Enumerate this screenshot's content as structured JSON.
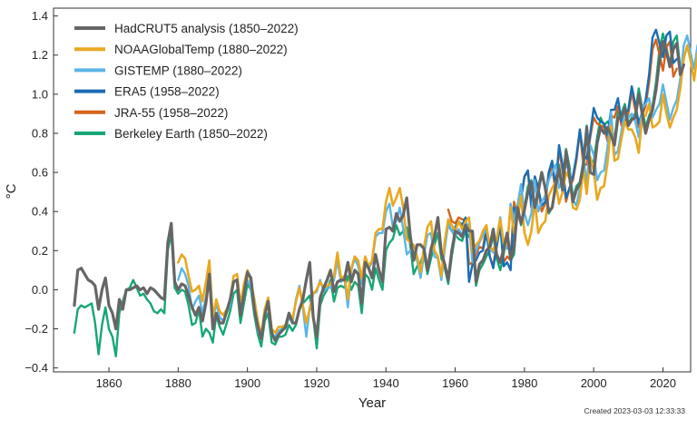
{
  "chart_data": {
    "type": "line",
    "title": "",
    "xlabel": "Year",
    "ylabel": "°C",
    "xlim": [
      1844,
      2028
    ],
    "ylim": [
      -0.42,
      1.44
    ],
    "xticks": [
      1860,
      1880,
      1900,
      1920,
      1940,
      1960,
      1980,
      2000,
      2020
    ],
    "yticks": [
      -0.4,
      -0.2,
      0.0,
      0.2,
      0.4,
      0.6,
      0.8,
      1.0,
      1.2,
      1.4
    ],
    "ytick_labels": [
      "−0.4",
      "−0.2",
      "0.0",
      "0.2",
      "0.4",
      "0.6",
      "0.8",
      "1.0",
      "1.2",
      "1.4"
    ],
    "xtick_labels": [
      "1860",
      "1880",
      "1900",
      "1920",
      "1940",
      "1960",
      "1980",
      "2000",
      "2020"
    ],
    "grid": false,
    "legend_position": "top-left",
    "series": [
      {
        "name": "HadCRUT5 analysis (1850–2022)",
        "color": "#666666",
        "x_start": 1850,
        "values": [
          -0.08,
          0.1,
          0.11,
          0.08,
          0.05,
          0.04,
          0.02,
          -0.1,
          0.0,
          0.06,
          -0.08,
          -0.12,
          -0.2,
          -0.05,
          -0.1,
          0.0,
          0.0,
          0.01,
          0.02,
          0.0,
          0.01,
          -0.02,
          0.01,
          0.0,
          -0.02,
          -0.04,
          -0.05,
          0.24,
          0.34,
          0.04,
          0.0,
          0.03,
          0.02,
          -0.03,
          -0.09,
          -0.13,
          -0.09,
          -0.16,
          -0.07,
          0.08,
          -0.2,
          -0.12,
          -0.17,
          -0.17,
          -0.11,
          -0.05,
          0.04,
          0.05,
          -0.13,
          -0.02,
          0.09,
          0.06,
          -0.1,
          -0.19,
          -0.25,
          -0.13,
          -0.06,
          -0.22,
          -0.26,
          -0.23,
          -0.21,
          -0.19,
          -0.12,
          -0.17,
          -0.17,
          -0.1,
          -0.05,
          0.05,
          0.14,
          -0.14,
          -0.24,
          -0.04,
          0.01,
          0.05,
          0.1,
          -0.01,
          0.04,
          0.05,
          0.05,
          0.14,
          0.04,
          0.1,
          0.08,
          -0.07,
          0.14,
          0.11,
          0.06,
          0.18,
          0.1,
          0.04,
          0.31,
          0.32,
          0.3,
          0.39,
          0.35,
          0.38,
          0.47,
          0.28,
          0.15,
          0.23,
          0.23,
          0.21,
          0.1,
          0.21,
          0.27,
          0.37,
          0.19,
          0.13,
          0.05,
          0.2,
          0.3,
          0.29,
          0.27,
          0.33,
          0.3,
          0.3,
          0.04,
          0.13,
          0.15,
          0.2,
          0.22,
          0.31,
          0.18,
          0.14,
          0.21,
          0.29,
          0.16,
          0.21,
          0.42,
          0.34,
          0.41,
          0.5,
          0.55,
          0.42,
          0.5,
          0.6,
          0.52,
          0.4,
          0.42,
          0.53,
          0.62,
          0.51,
          0.71,
          0.58,
          0.45,
          0.51,
          0.54,
          0.63,
          0.83,
          0.6,
          0.59,
          0.75,
          0.83,
          0.8,
          0.83,
          0.79,
          0.74,
          0.88,
          0.88,
          0.93,
          0.84,
          0.87,
          0.88,
          1.0,
          0.9,
          0.8,
          0.87,
          0.92,
          1.02,
          1.17,
          1.27,
          1.22,
          1.14,
          1.23,
          1.26,
          1.1,
          1.15
        ]
      },
      {
        "name": "NOAAGlobalTemp (1880–2022)",
        "color": "#e8a820",
        "x_start": 1880,
        "values": [
          0.14,
          0.18,
          0.16,
          0.07,
          -0.01,
          0.0,
          0.02,
          -0.06,
          0.04,
          0.15,
          -0.14,
          -0.05,
          -0.11,
          -0.13,
          -0.1,
          -0.05,
          0.07,
          0.08,
          -0.08,
          0.03,
          0.1,
          0.04,
          -0.05,
          -0.16,
          -0.23,
          -0.1,
          -0.04,
          -0.2,
          -0.22,
          -0.19,
          -0.19,
          -0.18,
          -0.12,
          -0.15,
          -0.06,
          0.01,
          -0.08,
          -0.17,
          -0.1,
          -0.02,
          0.0,
          0.04,
          0.01,
          0.02,
          0.03,
          0.07,
          0.19,
          0.06,
          0.07,
          -0.05,
          0.11,
          0.17,
          0.15,
          0.06,
          0.17,
          0.12,
          0.15,
          0.29,
          0.31,
          0.31,
          0.45,
          0.52,
          0.43,
          0.47,
          0.52,
          0.42,
          0.26,
          0.24,
          0.23,
          0.17,
          0.09,
          0.22,
          0.32,
          0.35,
          0.2,
          0.17,
          0.07,
          0.25,
          0.36,
          0.33,
          0.3,
          0.35,
          0.31,
          0.35,
          0.37,
          0.19,
          0.23,
          0.25,
          0.3,
          0.33,
          0.22,
          0.2,
          0.26,
          0.36,
          0.24,
          0.23,
          0.42,
          0.29,
          0.36,
          0.48,
          0.29,
          0.23,
          0.3,
          0.45,
          0.29,
          0.33,
          0.35,
          0.48,
          0.52,
          0.55,
          0.44,
          0.5,
          0.6,
          0.57,
          0.42,
          0.41,
          0.46,
          0.62,
          0.49,
          0.68,
          0.61,
          0.46,
          0.52,
          0.53,
          0.65,
          0.84,
          0.66,
          0.67,
          0.77,
          0.86,
          0.82,
          0.82,
          0.78,
          0.7,
          0.88,
          0.89,
          0.95,
          0.83,
          0.84,
          0.86,
          1.0,
          0.9,
          0.83,
          0.88,
          0.92,
          1.03,
          1.18,
          1.25,
          1.17,
          1.07,
          1.21,
          1.24,
          1.08,
          1.13
        ]
      },
      {
        "name": "GISTEMP (1880–2022)",
        "color": "#5bb5e8",
        "x_start": 1880,
        "values": [
          0.05,
          0.11,
          0.08,
          0.02,
          -0.1,
          -0.06,
          -0.03,
          -0.12,
          -0.04,
          0.09,
          -0.16,
          -0.07,
          -0.14,
          -0.16,
          -0.12,
          -0.08,
          0.04,
          0.05,
          -0.11,
          0.0,
          0.05,
          0.01,
          -0.09,
          -0.21,
          -0.25,
          -0.13,
          -0.07,
          -0.23,
          -0.24,
          -0.21,
          -0.2,
          -0.2,
          -0.14,
          -0.17,
          -0.05,
          0.02,
          -0.09,
          -0.24,
          -0.09,
          -0.02,
          -0.01,
          0.05,
          -0.01,
          0.01,
          0.01,
          0.05,
          0.15,
          0.04,
          0.06,
          -0.09,
          0.1,
          0.16,
          0.12,
          0.03,
          0.15,
          0.11,
          0.14,
          0.27,
          0.29,
          0.29,
          0.4,
          0.44,
          0.32,
          0.35,
          0.42,
          0.31,
          0.18,
          0.2,
          0.18,
          0.15,
          0.06,
          0.18,
          0.28,
          0.29,
          0.17,
          0.16,
          0.05,
          0.21,
          0.34,
          0.3,
          0.27,
          0.31,
          0.28,
          0.34,
          0.33,
          0.14,
          0.2,
          0.24,
          0.28,
          0.31,
          0.21,
          0.19,
          0.26,
          0.37,
          0.23,
          0.21,
          0.44,
          0.36,
          0.43,
          0.54,
          0.39,
          0.33,
          0.39,
          0.56,
          0.4,
          0.45,
          0.48,
          0.56,
          0.6,
          0.64,
          0.52,
          0.56,
          0.64,
          0.61,
          0.46,
          0.43,
          0.52,
          0.67,
          0.55,
          0.74,
          0.69,
          0.56,
          0.6,
          0.61,
          0.73,
          0.91,
          0.69,
          0.71,
          0.81,
          0.91,
          0.88,
          0.9,
          0.86,
          0.78,
          0.93,
          0.95,
          0.98,
          0.88,
          0.92,
          0.95,
          1.05,
          0.96,
          0.87,
          0.93,
          0.97,
          1.08,
          1.25,
          1.3,
          1.21,
          1.13,
          1.25,
          1.29,
          1.12,
          1.16
        ]
      },
      {
        "name": "ERA5 (1958–2022)",
        "color": "#1a6db3",
        "x_start": 1958,
        "values": [
          0.33,
          0.3,
          0.32,
          0.35,
          0.33,
          0.37,
          0.04,
          0.13,
          0.15,
          0.19,
          0.2,
          0.29,
          0.17,
          0.11,
          0.22,
          0.33,
          0.12,
          0.14,
          0.1,
          0.42,
          0.37,
          0.46,
          0.58,
          0.61,
          0.43,
          0.58,
          0.52,
          0.43,
          0.45,
          0.6,
          0.66,
          0.52,
          0.74,
          0.64,
          0.47,
          0.52,
          0.58,
          0.68,
          0.82,
          0.69,
          0.67,
          0.8,
          0.93,
          0.88,
          0.86,
          0.85,
          0.79,
          0.92,
          0.92,
          0.98,
          0.86,
          0.9,
          0.92,
          1.04,
          0.95,
          0.85,
          0.91,
          0.97,
          1.1,
          1.29,
          1.33,
          1.26,
          1.19,
          1.3,
          1.32,
          1.16,
          1.18
        ]
      },
      {
        "name": "JRA-55 (1958–2022)",
        "color": "#d4651c",
        "x_start": 1958,
        "values": [
          0.41,
          0.35,
          0.34,
          0.37,
          0.36,
          0.36,
          0.13,
          0.14,
          0.18,
          0.22,
          0.21,
          0.33,
          0.17,
          0.12,
          0.24,
          0.37,
          0.14,
          0.17,
          0.15,
          0.45,
          0.38,
          0.46,
          0.58,
          0.6,
          0.42,
          0.56,
          0.51,
          0.4,
          0.44,
          0.59,
          0.63,
          0.5,
          0.72,
          0.61,
          0.45,
          0.52,
          0.56,
          0.66,
          0.81,
          0.64,
          0.64,
          0.78,
          0.88,
          0.85,
          0.84,
          0.83,
          0.76,
          0.89,
          0.88,
          0.94,
          0.84,
          0.86,
          0.9,
          1.01,
          0.92,
          0.83,
          0.89,
          0.94,
          1.06,
          1.23,
          1.28,
          1.2,
          1.12,
          1.24,
          1.27,
          1.09,
          1.13
        ]
      },
      {
        "name": "Berkeley Earth (1850–2022)",
        "color": "#17a673",
        "x_start": 1850,
        "values": [
          -0.22,
          -0.1,
          -0.08,
          -0.09,
          -0.08,
          -0.07,
          -0.17,
          -0.33,
          -0.18,
          -0.09,
          -0.2,
          -0.24,
          -0.34,
          -0.12,
          -0.06,
          0.0,
          0.01,
          0.05,
          0.01,
          -0.03,
          -0.02,
          -0.05,
          -0.07,
          -0.11,
          -0.12,
          -0.1,
          -0.12,
          0.2,
          0.29,
          0.01,
          -0.02,
          0.0,
          -0.01,
          -0.08,
          -0.18,
          -0.17,
          -0.1,
          -0.24,
          -0.2,
          -0.22,
          -0.27,
          -0.13,
          -0.19,
          -0.23,
          -0.17,
          -0.11,
          -0.02,
          0.0,
          -0.17,
          -0.07,
          0.03,
          0.0,
          -0.13,
          -0.23,
          -0.29,
          -0.16,
          -0.12,
          -0.27,
          -0.28,
          -0.24,
          -0.24,
          -0.23,
          -0.18,
          -0.21,
          -0.18,
          -0.1,
          -0.07,
          -0.05,
          -0.03,
          -0.14,
          -0.3,
          -0.08,
          -0.03,
          0.0,
          0.05,
          -0.06,
          0.01,
          0.02,
          0.01,
          0.07,
          0.0,
          0.04,
          0.02,
          -0.12,
          0.08,
          0.06,
          0.0,
          0.11,
          0.05,
          0.0,
          0.2,
          0.24,
          0.26,
          0.33,
          0.28,
          0.3,
          0.32,
          0.23,
          0.08,
          0.12,
          0.14,
          0.19,
          0.08,
          0.16,
          0.23,
          0.29,
          0.16,
          0.11,
          0.03,
          0.17,
          0.28,
          0.26,
          0.25,
          0.3,
          0.27,
          0.26,
          0.02,
          0.1,
          0.13,
          0.17,
          0.2,
          0.28,
          0.16,
          0.1,
          0.18,
          0.29,
          0.15,
          0.18,
          0.42,
          0.33,
          0.42,
          0.53,
          0.56,
          0.41,
          0.53,
          0.6,
          0.52,
          0.39,
          0.42,
          0.55,
          0.64,
          0.52,
          0.72,
          0.63,
          0.47,
          0.53,
          0.55,
          0.66,
          0.84,
          0.64,
          0.66,
          0.78,
          0.88,
          0.84,
          0.86,
          0.83,
          0.77,
          0.91,
          0.9,
          0.95,
          0.85,
          0.88,
          0.9,
          1.03,
          0.93,
          0.83,
          0.89,
          0.94,
          1.06,
          1.23,
          1.31,
          1.24,
          1.15,
          1.27,
          1.3,
          1.13,
          1.17
        ]
      }
    ]
  },
  "footer": {
    "created_label": "Created 2023-03-03   12:33:33"
  }
}
